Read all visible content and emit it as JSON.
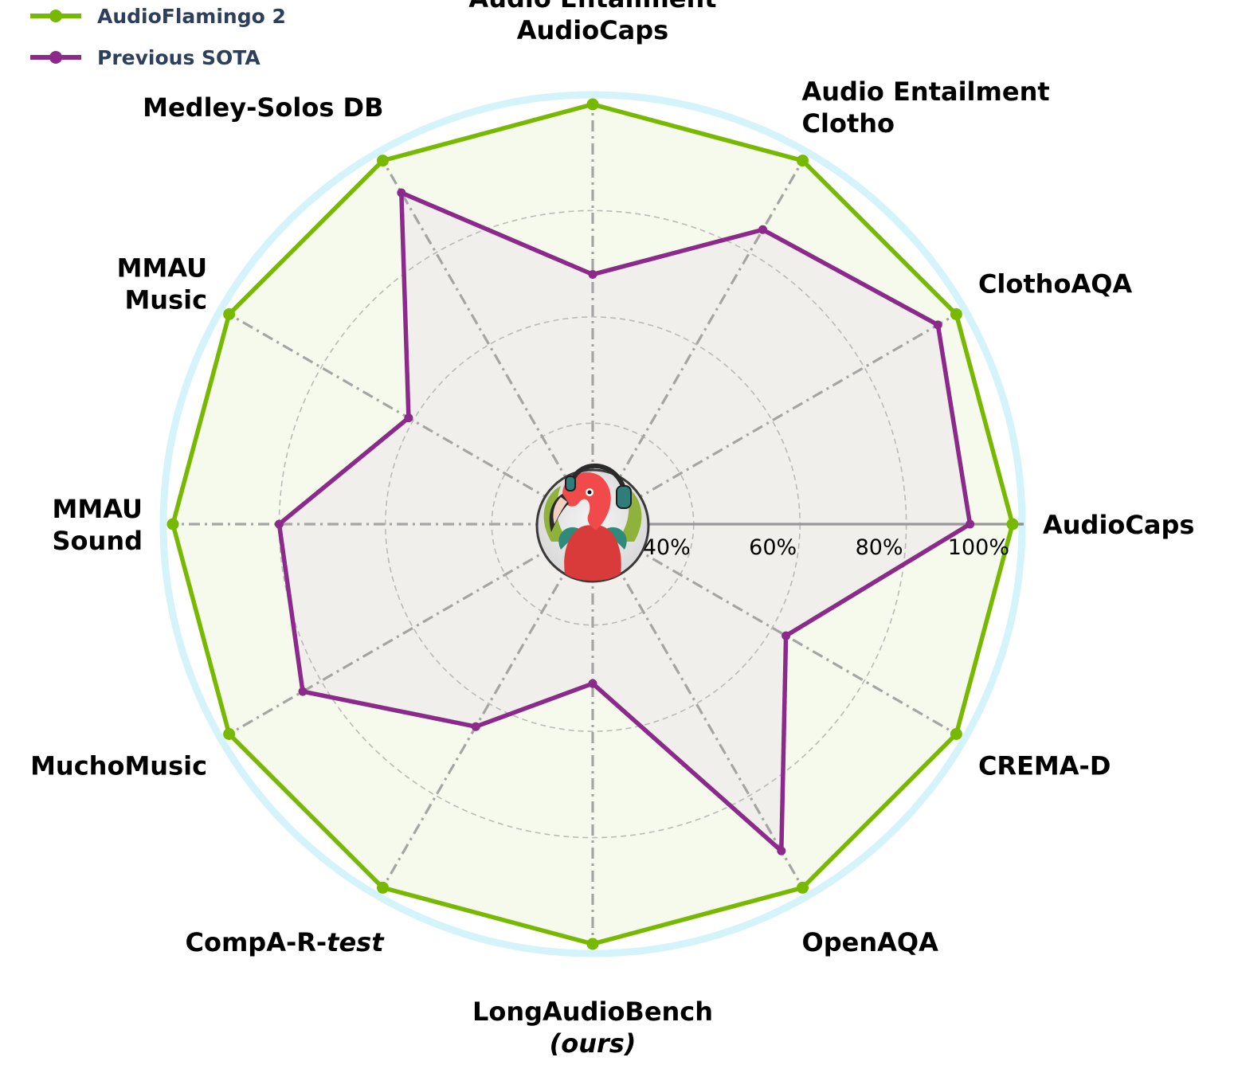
{
  "chart_data": {
    "type": "radar",
    "categories": [
      [
        "AudioCaps"
      ],
      [
        "ClothoAQA"
      ],
      [
        "Audio Entailment",
        "Clotho"
      ],
      [
        "Audio Entailment",
        "AudioCaps"
      ],
      [
        "Medley-Solos DB"
      ],
      [
        "MMAU",
        "Music"
      ],
      [
        "MMAU",
        "Sound"
      ],
      [
        "MuchoMusic"
      ],
      [
        "CompA-R-test"
      ],
      [
        "LongAudioBench",
        "(ours)"
      ],
      [
        "OpenAQA"
      ],
      [
        "CREMA-D"
      ]
    ],
    "series": [
      {
        "name": "AudioFlamingo 2",
        "color": "#76b900",
        "values": [
          100,
          100,
          100,
          100,
          100,
          100,
          100,
          100,
          100,
          100,
          100,
          100
        ]
      },
      {
        "name": "Previous SOTA",
        "color": "#8b2a8b",
        "values": [
          92,
          96,
          85,
          68,
          93,
          61,
          80,
          84,
          65,
          51,
          92,
          63
        ]
      }
    ],
    "radial_ticks": [
      "40%",
      "60%",
      "80%",
      "100%"
    ],
    "radial_tick_values": [
      40,
      60,
      80,
      100
    ],
    "legend_position": "top-left"
  }
}
